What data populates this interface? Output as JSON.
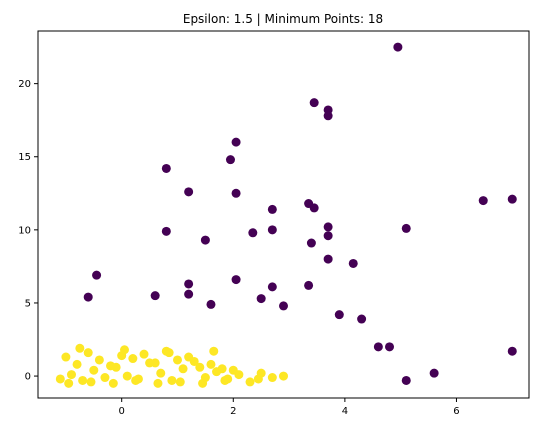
{
  "chart_data": {
    "type": "scatter",
    "title": "Epsilon: 1.5 | Minimum Points: 18",
    "xlabel": "",
    "ylabel": "",
    "xlim": [
      -1.5,
      7.3
    ],
    "ylim": [
      -1.5,
      23.6
    ],
    "xticks": [
      0,
      2,
      4,
      6
    ],
    "yticks": [
      0,
      5,
      10,
      15,
      20
    ],
    "grid": false,
    "legend": "none",
    "colors": {
      "noise": "#440154",
      "cluster": "#fde725"
    },
    "series": [
      {
        "color": "#440154",
        "x": [
          4.95,
          3.45,
          3.7,
          3.7,
          2.05,
          0.8,
          1.95,
          1.2,
          2.05,
          6.48,
          7.0,
          2.7,
          3.35,
          3.45,
          2.7,
          5.1,
          0.8,
          2.35,
          3.7,
          3.4,
          1.5,
          3.7,
          4.15,
          3.7,
          2.05,
          -0.45,
          1.2,
          3.35,
          2.7,
          -0.6,
          7.0,
          5.6,
          5.1,
          1.2,
          0.6,
          1.6,
          2.5,
          2.9,
          3.9,
          4.3,
          4.6,
          4.8
        ],
        "y": [
          22.5,
          18.7,
          18.2,
          17.8,
          16.0,
          14.2,
          14.8,
          12.6,
          12.5,
          12.0,
          12.1,
          11.4,
          11.8,
          11.5,
          10.0,
          10.1,
          9.9,
          9.8,
          10.2,
          9.1,
          9.3,
          9.6,
          7.7,
          8.0,
          6.6,
          6.9,
          6.3,
          6.2,
          6.1,
          5.4,
          1.7,
          0.2,
          -0.3,
          5.6,
          5.5,
          4.9,
          5.3,
          4.8,
          4.2,
          3.9,
          2.0,
          2.0
        ]
      },
      {
        "color": "#fde725",
        "x": [
          -1.1,
          -0.9,
          -0.7,
          -0.5,
          -0.3,
          -0.1,
          0.1,
          0.3,
          0.5,
          0.7,
          0.9,
          1.1,
          1.3,
          1.5,
          1.7,
          1.9,
          2.1,
          2.3,
          2.5,
          2.7,
          2.9,
          -1.0,
          -0.8,
          -0.6,
          -0.4,
          -0.2,
          0.0,
          0.2,
          0.4,
          0.6,
          0.8,
          1.0,
          1.2,
          1.4,
          1.6,
          1.8,
          2.0,
          -0.95,
          -0.55,
          -0.15,
          0.25,
          0.65,
          1.05,
          1.45,
          1.85,
          -0.75,
          0.05,
          0.85,
          1.65,
          2.45
        ],
        "y": [
          -0.2,
          0.1,
          -0.3,
          0.4,
          -0.1,
          0.6,
          0.0,
          -0.2,
          0.9,
          0.2,
          -0.3,
          0.5,
          1.0,
          -0.1,
          0.3,
          -0.2,
          0.1,
          -0.4,
          0.2,
          -0.1,
          0.0,
          1.3,
          0.8,
          1.6,
          1.1,
          0.7,
          1.4,
          1.2,
          1.5,
          0.9,
          1.7,
          1.1,
          1.3,
          0.6,
          0.8,
          0.5,
          0.4,
          -0.5,
          -0.4,
          -0.5,
          -0.3,
          -0.5,
          -0.4,
          -0.5,
          -0.3,
          1.9,
          1.8,
          1.6,
          1.7,
          -0.2
        ]
      }
    ]
  }
}
